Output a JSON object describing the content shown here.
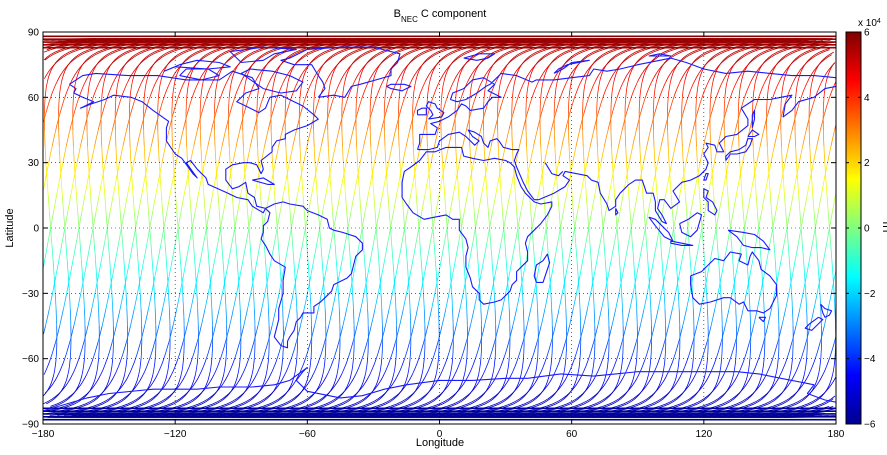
{
  "chart_data": {
    "type": "line",
    "title_main": "B",
    "title_sub": "NEC",
    "title_rest": " C component",
    "xlabel": "Longitude",
    "ylabel": "Latitude",
    "xlim": [
      -180,
      180
    ],
    "ylim": [
      -90,
      90
    ],
    "xticks": [
      -180,
      -120,
      -60,
      0,
      60,
      120,
      180
    ],
    "xtick_labels": [
      "−180",
      "−120",
      "−60",
      "0",
      "60",
      "120",
      "180"
    ],
    "yticks": [
      -90,
      -60,
      -30,
      0,
      30,
      60,
      90
    ],
    "ytick_labels": [
      "−90",
      "−60",
      "−30",
      "0",
      "30",
      "60",
      "90"
    ],
    "grid": true,
    "colorbar": {
      "label": "nT",
      "exponent_label": "x 10",
      "exponent_power": "4",
      "range": [
        -6,
        6
      ],
      "ticks": [
        -6,
        -4,
        -2,
        0,
        2,
        4,
        6
      ],
      "tick_labels": [
        "−6",
        "−4",
        "−2",
        "0",
        "2",
        "4",
        "6"
      ],
      "colormap": "jet",
      "position": "right"
    },
    "series_description": "Satellite ground tracks colored by B_NEC C component (≈ -6e4 nT near south pole to +6e4 nT near north pole)",
    "orbit_inclination_deg": 87,
    "coastline_color": "#1a1aff"
  }
}
